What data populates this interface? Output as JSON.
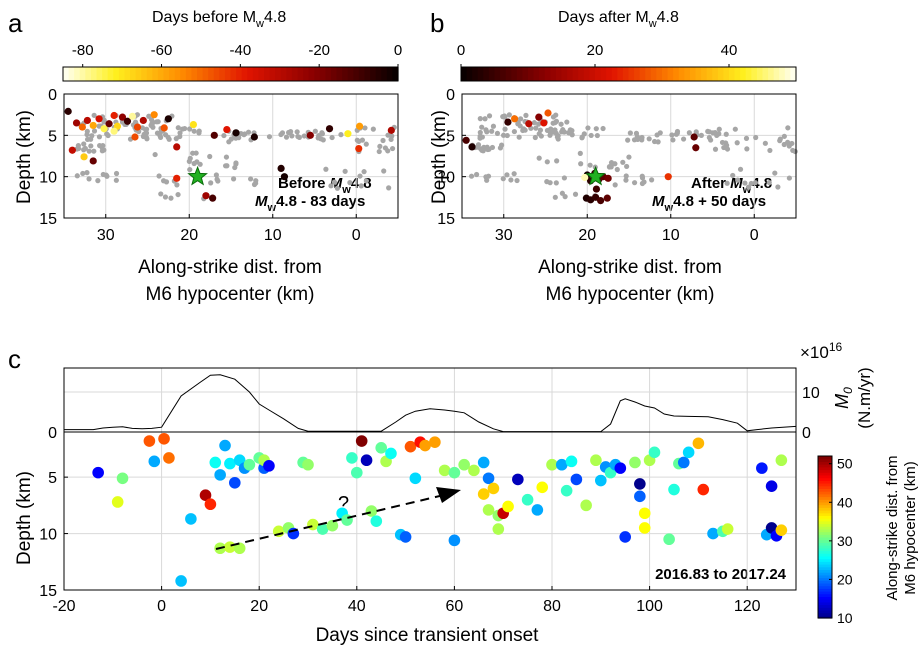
{
  "panel_labels": {
    "a": "a",
    "b": "b",
    "c": "c"
  },
  "cb_a": {
    "title": "Days before M",
    "title_sub": "w",
    "title_tail": "4.8",
    "ticks": [
      "-80",
      "-60",
      "-40",
      "-20",
      "0"
    ],
    "tick_values": [
      -80,
      -60,
      -40,
      -20,
      0
    ],
    "range": [
      -85,
      0
    ]
  },
  "cb_b": {
    "title": "Days after M",
    "title_sub": "w",
    "title_tail": "4.8",
    "ticks": [
      "0",
      "20",
      "40"
    ],
    "tick_values": [
      0,
      20,
      40
    ],
    "range": [
      0,
      50
    ]
  },
  "panel_a": {
    "ylabel": "Depth (km)",
    "xlabel1": "Along-strike dist. from",
    "xlabel2": "M6 hypocenter (km)",
    "yticks": [
      "0",
      "5",
      "10",
      "15"
    ],
    "xticks": [
      "30",
      "20",
      "10",
      "0"
    ],
    "ann1": "Before ",
    "ann1_it": "M",
    "ann1_sub": "w",
    "ann1_tail": "4.8",
    "ann2_it": "M",
    "ann2_sub": "w",
    "ann2_tail": "4.8 - 83 days"
  },
  "panel_b": {
    "ylabel": "Depth (km)",
    "xlabel1": "Along-strike dist. from",
    "xlabel2": "M6 hypocenter (km)",
    "yticks": [
      "0",
      "5",
      "10",
      "15"
    ],
    "xticks": [
      "30",
      "20",
      "10",
      "0"
    ],
    "ann1": "After ",
    "ann1_it": "M",
    "ann1_sub": "w",
    "ann1_tail": "4.8",
    "ann2_it": "M",
    "ann2_sub": "w",
    "ann2_tail": "4.8 + 50 days"
  },
  "panel_c_top": {
    "ylabel_main": "M",
    "ylabel_sub": "0",
    "ylabel_units": "(N.m/yr)",
    "exponent": "×10",
    "exponent_power": "16",
    "yticks": [
      "0",
      "10"
    ],
    "ytick_right_top": "10",
    "ytick_right_bottom": "0"
  },
  "panel_c": {
    "ylabel": "Depth (km)",
    "xlabel": "Days since transient onset",
    "xticks": [
      "-20",
      "0",
      "20",
      "40",
      "60",
      "80",
      "100",
      "120"
    ],
    "yticks": [
      "5",
      "10",
      "15"
    ],
    "question": "?",
    "date_range": "2016.83 to 2017.24"
  },
  "cb_c": {
    "label1": "Along-strike dist. from",
    "label2": "M6 hypocenter (km)",
    "ticks": [
      "50",
      "40",
      "30",
      "20",
      "10"
    ],
    "tick_values": [
      50,
      40,
      30,
      20,
      10
    ],
    "range": [
      10,
      52
    ]
  },
  "colors": {
    "star": "#22b022",
    "grid": "#d9d9d9",
    "bg_point": "#a6a6a6"
  },
  "chart_data": [
    {
      "type": "scatter",
      "panel": "a",
      "xlabel": "Along-strike dist. from M6 hypocenter (km)",
      "ylabel": "Depth (km)",
      "xlim": [
        35,
        -5
      ],
      "ylim": [
        15,
        0
      ],
      "mainshock": {
        "x": 19,
        "y": 10
      },
      "points": [
        {
          "x": 34.5,
          "y": 2.1,
          "c": -5
        },
        {
          "x": 33.5,
          "y": 3.5,
          "c": -25
        },
        {
          "x": 32.8,
          "y": 4.0,
          "c": -50
        },
        {
          "x": 32.2,
          "y": 3.2,
          "c": -30
        },
        {
          "x": 31.5,
          "y": 3.8,
          "c": -60
        },
        {
          "x": 30.8,
          "y": 3.0,
          "c": -35
        },
        {
          "x": 30.2,
          "y": 4.2,
          "c": -75
        },
        {
          "x": 29.6,
          "y": 3.6,
          "c": -15
        },
        {
          "x": 29.0,
          "y": 2.6,
          "c": -40
        },
        {
          "x": 28.6,
          "y": 3.9,
          "c": -68
        },
        {
          "x": 28.0,
          "y": 2.8,
          "c": -22
        },
        {
          "x": 27.4,
          "y": 3.3,
          "c": -8
        },
        {
          "x": 26.8,
          "y": 2.7,
          "c": -80
        },
        {
          "x": 26.2,
          "y": 4.0,
          "c": -45
        },
        {
          "x": 25.5,
          "y": 3.2,
          "c": -28
        },
        {
          "x": 24.2,
          "y": 2.5,
          "c": -55
        },
        {
          "x": 22.5,
          "y": 3.0,
          "c": -3
        },
        {
          "x": 19.5,
          "y": 3.7,
          "c": -70
        },
        {
          "x": 15.5,
          "y": 4.3,
          "c": -38
        },
        {
          "x": 14.4,
          "y": 4.7,
          "c": -2
        },
        {
          "x": 17.0,
          "y": 5.0,
          "c": -12
        },
        {
          "x": 21.5,
          "y": 6.4,
          "c": -30
        },
        {
          "x": 26.5,
          "y": 5.2,
          "c": -46
        },
        {
          "x": 32.6,
          "y": 7.6,
          "c": -66
        },
        {
          "x": 31.5,
          "y": 8.1,
          "c": -15
        },
        {
          "x": 9.0,
          "y": 9.0,
          "c": -4
        },
        {
          "x": 8.6,
          "y": 10.0,
          "c": -2
        },
        {
          "x": 21.5,
          "y": 10.2,
          "c": -40
        },
        {
          "x": 18.0,
          "y": 12.3,
          "c": -25
        },
        {
          "x": 17.2,
          "y": 12.6,
          "c": -10
        },
        {
          "x": 5.5,
          "y": 5.0,
          "c": -20
        },
        {
          "x": 3.2,
          "y": 4.2,
          "c": -6
        },
        {
          "x": 1.0,
          "y": 4.8,
          "c": -72
        },
        {
          "x": -0.3,
          "y": 6.6,
          "c": -42
        },
        {
          "x": -4.2,
          "y": 4.4,
          "c": -28
        },
        {
          "x": -0.4,
          "y": 3.9,
          "c": -58
        },
        {
          "x": 12.2,
          "y": 5.2,
          "c": -3
        },
        {
          "x": 34.0,
          "y": 6.8,
          "c": -32
        },
        {
          "x": 29.0,
          "y": 4.5,
          "c": -78
        },
        {
          "x": 23.0,
          "y": 4.1,
          "c": -47
        }
      ]
    },
    {
      "type": "scatter",
      "panel": "b",
      "xlabel": "Along-strike dist. from M6 hypocenter (km)",
      "ylabel": "Depth (km)",
      "xlim": [
        35,
        -5
      ],
      "ylim": [
        15,
        0
      ],
      "mainshock": {
        "x": 19,
        "y": 10
      },
      "points": [
        {
          "x": 34.5,
          "y": 5.6,
          "c": 6
        },
        {
          "x": 33.8,
          "y": 6.4,
          "c": 2
        },
        {
          "x": 29.5,
          "y": 3.4,
          "c": 4
        },
        {
          "x": 28.7,
          "y": 3.0,
          "c": 30
        },
        {
          "x": 27.0,
          "y": 3.6,
          "c": 18
        },
        {
          "x": 25.8,
          "y": 2.8,
          "c": 12
        },
        {
          "x": 25.2,
          "y": 3.5,
          "c": 22
        },
        {
          "x": 24.7,
          "y": 2.3,
          "c": 28
        },
        {
          "x": 20.0,
          "y": 9.8,
          "c": 1
        },
        {
          "x": 19.6,
          "y": 10.5,
          "c": 3
        },
        {
          "x": 19.1,
          "y": 9.6,
          "c": 4
        },
        {
          "x": 18.6,
          "y": 10.3,
          "c": 6
        },
        {
          "x": 18.1,
          "y": 10.0,
          "c": 8
        },
        {
          "x": 17.5,
          "y": 10.2,
          "c": 10
        },
        {
          "x": 20.3,
          "y": 10.1,
          "c": 48
        },
        {
          "x": 18.9,
          "y": 11.5,
          "c": 5
        },
        {
          "x": 20.1,
          "y": 12.6,
          "c": 2
        },
        {
          "x": 19.6,
          "y": 12.8,
          "c": 3
        },
        {
          "x": 19.0,
          "y": 12.5,
          "c": 4
        },
        {
          "x": 18.4,
          "y": 12.9,
          "c": 6
        },
        {
          "x": 17.6,
          "y": 12.6,
          "c": 8
        },
        {
          "x": 10.3,
          "y": 10.0,
          "c": 25
        },
        {
          "x": 7.2,
          "y": 5.2,
          "c": 8
        },
        {
          "x": 7.0,
          "y": 6.5,
          "c": 9
        }
      ]
    },
    {
      "type": "line",
      "panel": "c_top",
      "xlabel": "",
      "ylabel": "M0 (N.m/yr) ×10^16",
      "xlim": [
        -20,
        130
      ],
      "ylim": [
        0,
        16
      ],
      "x": [
        -20,
        -14,
        -12,
        -10,
        -8,
        -6,
        -4,
        -2,
        0,
        4,
        8,
        10,
        12,
        15,
        18,
        20,
        22,
        25,
        28,
        30,
        45,
        48,
        50,
        52,
        55,
        58,
        60,
        62,
        65,
        68,
        70,
        90,
        92,
        94,
        95,
        97,
        99,
        101,
        103,
        105,
        108,
        112,
        115,
        118,
        120,
        122,
        125,
        130
      ],
      "y": [
        0.6,
        0.6,
        1.0,
        1.2,
        1.3,
        0.9,
        0.8,
        0.9,
        1.2,
        9.0,
        12.5,
        14.2,
        14.3,
        13.2,
        10.0,
        7.0,
        5.5,
        3.3,
        0.9,
        0.2,
        0.2,
        2.5,
        4.2,
        5.2,
        5.8,
        5.5,
        5.2,
        4.8,
        2.5,
        0.8,
        0.1,
        0.1,
        2.0,
        7.8,
        8.3,
        7.5,
        6.5,
        6.0,
        4.5,
        4.0,
        3.9,
        3.8,
        3.1,
        2.2,
        0.3,
        0.6,
        1.0,
        1.4
      ]
    },
    {
      "type": "scatter",
      "panel": "c",
      "xlabel": "Days since transient onset",
      "ylabel": "Depth (km)",
      "title": "2016.83 to 2017.24",
      "xlim": [
        -20,
        130
      ],
      "ylim": [
        15,
        1
      ],
      "points": [
        {
          "x": -13,
          "y": 4.6,
          "c": 15
        },
        {
          "x": -9,
          "y": 7.2,
          "c": 35
        },
        {
          "x": -8,
          "y": 5.1,
          "c": 31
        },
        {
          "x": -2.5,
          "y": 1.8,
          "c": 43
        },
        {
          "x": -1.5,
          "y": 3.6,
          "c": 22
        },
        {
          "x": 0.5,
          "y": 1.6,
          "c": 43
        },
        {
          "x": 1.5,
          "y": 3.3,
          "c": 42
        },
        {
          "x": 4,
          "y": 14.2,
          "c": 23
        },
        {
          "x": 6,
          "y": 8.7,
          "c": 23
        },
        {
          "x": 9,
          "y": 6.6,
          "c": 50
        },
        {
          "x": 10,
          "y": 7.4,
          "c": 45
        },
        {
          "x": 11,
          "y": 3.7,
          "c": 26
        },
        {
          "x": 12,
          "y": 4.8,
          "c": 22
        },
        {
          "x": 13,
          "y": 2.2,
          "c": 22
        },
        {
          "x": 14,
          "y": 3.8,
          "c": 25
        },
        {
          "x": 15,
          "y": 5.5,
          "c": 18
        },
        {
          "x": 16,
          "y": 3.5,
          "c": 24
        },
        {
          "x": 17,
          "y": 4.2,
          "c": 21
        },
        {
          "x": 18,
          "y": 3.9,
          "c": 30
        },
        {
          "x": 20,
          "y": 3.3,
          "c": 30
        },
        {
          "x": 21,
          "y": 4.2,
          "c": 19
        },
        {
          "x": 21,
          "y": 3.5,
          "c": 33
        },
        {
          "x": 22,
          "y": 4.0,
          "c": 15
        },
        {
          "x": 12,
          "y": 11.3,
          "c": 33
        },
        {
          "x": 14,
          "y": 11.2,
          "c": 34
        },
        {
          "x": 16,
          "y": 11.3,
          "c": 33
        },
        {
          "x": 24,
          "y": 9.8,
          "c": 34
        },
        {
          "x": 26,
          "y": 9.5,
          "c": 32
        },
        {
          "x": 27,
          "y": 10.0,
          "c": 17
        },
        {
          "x": 29,
          "y": 3.7,
          "c": 30
        },
        {
          "x": 30,
          "y": 3.9,
          "c": 32
        },
        {
          "x": 31,
          "y": 9.2,
          "c": 34
        },
        {
          "x": 33,
          "y": 9.6,
          "c": 29
        },
        {
          "x": 35,
          "y": 9.3,
          "c": 32
        },
        {
          "x": 37,
          "y": 8.2,
          "c": 25
        },
        {
          "x": 38,
          "y": 8.8,
          "c": 30
        },
        {
          "x": 39,
          "y": 3.3,
          "c": 28
        },
        {
          "x": 40,
          "y": 4.6,
          "c": 29
        },
        {
          "x": 41,
          "y": 1.8,
          "c": 52
        },
        {
          "x": 42,
          "y": 3.5,
          "c": 12
        },
        {
          "x": 43,
          "y": 8.0,
          "c": 32
        },
        {
          "x": 44,
          "y": 8.9,
          "c": 27
        },
        {
          "x": 45,
          "y": 2.4,
          "c": 30
        },
        {
          "x": 46,
          "y": 3.6,
          "c": 33
        },
        {
          "x": 47,
          "y": 2.9,
          "c": 26
        },
        {
          "x": 49,
          "y": 10.1,
          "c": 23
        },
        {
          "x": 50,
          "y": 10.3,
          "c": 19
        },
        {
          "x": 51,
          "y": 2.3,
          "c": 43
        },
        {
          "x": 52,
          "y": 5.1,
          "c": 24
        },
        {
          "x": 53,
          "y": 1.9,
          "c": 46
        },
        {
          "x": 54,
          "y": 2.2,
          "c": 40
        },
        {
          "x": 56,
          "y": 1.9,
          "c": 40
        },
        {
          "x": 58,
          "y": 4.4,
          "c": 33
        },
        {
          "x": 60,
          "y": 4.6,
          "c": 30
        },
        {
          "x": 60,
          "y": 10.6,
          "c": 21
        },
        {
          "x": 62,
          "y": 3.9,
          "c": 32
        },
        {
          "x": 64,
          "y": 4.4,
          "c": 33
        },
        {
          "x": 66,
          "y": 3.7,
          "c": 22
        },
        {
          "x": 67,
          "y": 5.1,
          "c": 20
        },
        {
          "x": 66,
          "y": 6.5,
          "c": 38
        },
        {
          "x": 67,
          "y": 7.9,
          "c": 33
        },
        {
          "x": 68,
          "y": 6.0,
          "c": 38
        },
        {
          "x": 69,
          "y": 8.4,
          "c": 32
        },
        {
          "x": 70,
          "y": 8.2,
          "c": 49
        },
        {
          "x": 71,
          "y": 7.6,
          "c": 36
        },
        {
          "x": 69,
          "y": 9.6,
          "c": 33
        },
        {
          "x": 73,
          "y": 5.2,
          "c": 12
        },
        {
          "x": 75,
          "y": 7.0,
          "c": 28
        },
        {
          "x": 77,
          "y": 7.9,
          "c": 22
        },
        {
          "x": 78,
          "y": 5.9,
          "c": 36
        },
        {
          "x": 80,
          "y": 3.9,
          "c": 33
        },
        {
          "x": 82,
          "y": 3.9,
          "c": 22
        },
        {
          "x": 83,
          "y": 6.2,
          "c": 28
        },
        {
          "x": 84,
          "y": 3.6,
          "c": 26
        },
        {
          "x": 85,
          "y": 5.2,
          "c": 18
        },
        {
          "x": 87,
          "y": 7.5,
          "c": 33
        },
        {
          "x": 89,
          "y": 3.5,
          "c": 33
        },
        {
          "x": 91,
          "y": 4.1,
          "c": 21
        },
        {
          "x": 90,
          "y": 5.3,
          "c": 23
        },
        {
          "x": 92,
          "y": 4.6,
          "c": 28
        },
        {
          "x": 93,
          "y": 3.9,
          "c": 22
        },
        {
          "x": 94,
          "y": 4.2,
          "c": 15
        },
        {
          "x": 95,
          "y": 10.3,
          "c": 17
        },
        {
          "x": 97,
          "y": 3.7,
          "c": 32
        },
        {
          "x": 98,
          "y": 5.6,
          "c": 10
        },
        {
          "x": 98,
          "y": 6.7,
          "c": 19
        },
        {
          "x": 99,
          "y": 8.2,
          "c": 36
        },
        {
          "x": 99,
          "y": 9.5,
          "c": 36
        },
        {
          "x": 100,
          "y": 3.5,
          "c": 33
        },
        {
          "x": 101,
          "y": 2.8,
          "c": 28
        },
        {
          "x": 104,
          "y": 10.5,
          "c": 30
        },
        {
          "x": 105,
          "y": 6.1,
          "c": 27
        },
        {
          "x": 106,
          "y": 3.8,
          "c": 30
        },
        {
          "x": 107,
          "y": 3.7,
          "c": 20
        },
        {
          "x": 108,
          "y": 2.8,
          "c": 24
        },
        {
          "x": 110,
          "y": 2.0,
          "c": 39
        },
        {
          "x": 111,
          "y": 6.1,
          "c": 45
        },
        {
          "x": 113,
          "y": 10.0,
          "c": 22
        },
        {
          "x": 115,
          "y": 9.8,
          "c": 29
        },
        {
          "x": 116,
          "y": 9.6,
          "c": 34
        },
        {
          "x": 123,
          "y": 4.2,
          "c": 16
        },
        {
          "x": 124,
          "y": 10.1,
          "c": 22
        },
        {
          "x": 125,
          "y": 5.8,
          "c": 14
        },
        {
          "x": 125,
          "y": 9.5,
          "c": 10
        },
        {
          "x": 126,
          "y": 10.2,
          "c": 15
        },
        {
          "x": 127,
          "y": 3.5,
          "c": 33
        },
        {
          "x": 127,
          "y": 9.7,
          "c": 38
        }
      ]
    }
  ]
}
